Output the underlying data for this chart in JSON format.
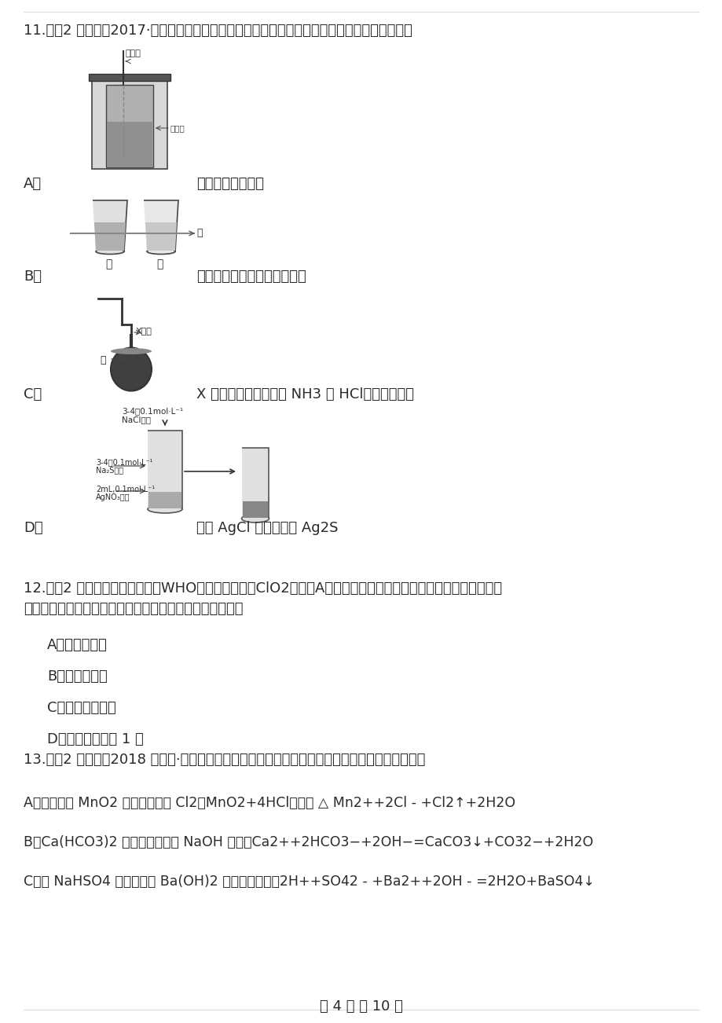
{
  "bg_color": "#ffffff",
  "text_color": "#2a2a2a",
  "title_q11": "11.　（2 分）　（2017·遂宁模拟）如图所示的实验，能达到实验目的或说法正确的是（　　）",
  "opt_A_label": "A．",
  "opt_A_text": "进行中和热的测定",
  "opt_B_label": "B．",
  "opt_B_text": "运用该实验可区分胶体和溶液",
  "opt_C_label": "C．",
  "opt_C_text": "X 若为苯，可用于吸收 NH3 或 HCl，并防止倒吸",
  "opt_D_label": "D．",
  "opt_D_text": "验证 AgCl 溶解度大于 Ag2S",
  "title_q12": "12.　（2 分）　世界卫生组织（WHO）将二氧化氯（ClO2）列为A级高效安全灰菌消毒剂，它在食品保鲜、饮用水",
  "title_q12b": "消毒等方面有着广泛应用，由此可判断二氧化氯（　　）。",
  "q12_A": "A．是强氧化剂",
  "q12_B": "B．是强还原剂",
  "q12_C": "C．是离子化合物",
  "q12_D": "D．分子中氯为负 1 价",
  "title_q13": "13.　（2 分）　（2018 高一下·历城开学考）下列离子方程式与所述事实相符且正确的是（　　）",
  "q13_A": "A．实验室用 MnO2 和浓盐酸制取 Cl2：MnO2+4HCl（浓） △ Mn2++2Cl - +Cl2↑+2H2O",
  "q13_B": "B．Ca(HCO3)2 溶液中加入少量 NaOH 溶液：Ca2++2HCO3−+2OH−=CaCO3↓+CO32−+2H2O",
  "q13_C": "C．向 NaHSO4 溶液中滴加 Ba(OH)2 溶液至呼中性：2H++SO42 - +Ba2++2OH - =2H2O+BaSO4↓",
  "footer": "第 4 页 共 10 页",
  "label_wenduji": "温度计",
  "label_pengyekong": "碰液孔",
  "label_xwuzhi": "X物质",
  "label_shui": "水",
  "label_jia": "甲",
  "label_yi": "乙",
  "label_guang": "光",
  "label_NaCl": "NaCl溢液",
  "label_Na2S": "Na₂S溢液",
  "label_AgNO3": "AgNO₃溢液",
  "label_drops1": "3-4滴0.1mol·L⁻¹",
  "label_drops2": "3-4滴0.1mol·L⁻¹",
  "label_2mL": "2mL,0.1mol·L⁻¹"
}
